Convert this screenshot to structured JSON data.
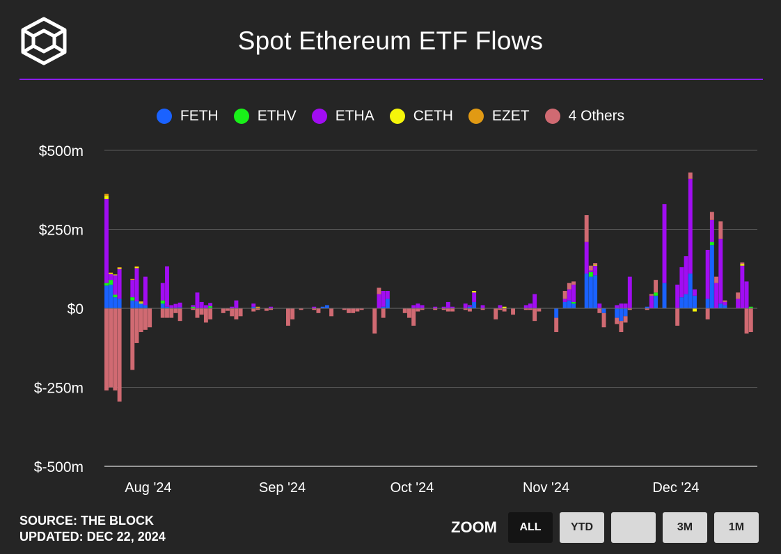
{
  "header": {
    "title": "Spot Ethereum ETF Flows"
  },
  "footer": {
    "source": "SOURCE: THE BLOCK",
    "updated": "UPDATED: DEC 22, 2024"
  },
  "zoom": {
    "label": "ZOOM",
    "buttons": [
      {
        "label": "ALL",
        "active": true
      },
      {
        "label": "YTD",
        "active": false
      },
      {
        "label": "",
        "active": false
      },
      {
        "label": "3M",
        "active": false
      },
      {
        "label": "1M",
        "active": false
      }
    ]
  },
  "colors": {
    "background": "#252525",
    "accent_rule": "#8a1cf0",
    "FETH": "#1a62ff",
    "ETHV": "#19f019",
    "ETHA": "#a10df2",
    "CETH": "#f5f50a",
    "EZET": "#e19a14",
    "4 Others": "#d06a72"
  },
  "chart_data": {
    "type": "bar",
    "stacked": true,
    "ylim": [
      -500,
      500
    ],
    "yticks": [
      500,
      250,
      0,
      -250,
      -500
    ],
    "ytick_labels": [
      "$500m",
      "$250m",
      "$0",
      "$-250m",
      "$-500m"
    ],
    "xlim": [
      "2024-07-23",
      "2024-12-20"
    ],
    "xticks": [
      {
        "label": "Aug '24",
        "date": "2024-08-01"
      },
      {
        "label": "Sep '24",
        "date": "2024-09-01"
      },
      {
        "label": "Oct '24",
        "date": "2024-10-01"
      },
      {
        "label": "Nov '24",
        "date": "2024-11-01"
      },
      {
        "label": "Dec '24",
        "date": "2024-12-01"
      }
    ],
    "grid": true,
    "legend_position": "top-center",
    "series_names": [
      "FETH",
      "ETHV",
      "ETHA",
      "CETH",
      "EZET",
      "4 Others"
    ],
    "bars": [
      {
        "date": "2024-07-23",
        "FETH": 72,
        "ETHV": 8,
        "ETHA": 266,
        "CETH": 10,
        "EZET": 6,
        "4 Others": -260
      },
      {
        "date": "2024-07-24",
        "FETH": 75,
        "ETHV": 15,
        "ETHA": 18,
        "CETH": 3,
        "EZET": 2,
        "4 Others": -250
      },
      {
        "date": "2024-07-25",
        "FETH": 35,
        "ETHV": 8,
        "ETHA": 62,
        "CETH": 2,
        "EZET": 0,
        "4 Others": -260
      },
      {
        "date": "2024-07-26",
        "FETH": 30,
        "ETHV": 0,
        "ETHA": 95,
        "CETH": 3,
        "EZET": 2,
        "4 Others": -295
      },
      {
        "date": "2024-07-29",
        "FETH": 25,
        "ETHV": 10,
        "ETHA": 55,
        "CETH": 0,
        "EZET": 3,
        "4 Others": -195
      },
      {
        "date": "2024-07-30",
        "FETH": 22,
        "ETHV": 0,
        "ETHA": 105,
        "CETH": 3,
        "EZET": 3,
        "4 Others": -110
      },
      {
        "date": "2024-07-31",
        "FETH": 15,
        "ETHV": 0,
        "ETHA": 0,
        "CETH": 4,
        "EZET": 3,
        "4 Others": -75
      },
      {
        "date": "2024-08-01",
        "FETH": 10,
        "ETHV": 0,
        "ETHA": 90,
        "CETH": 0,
        "EZET": 0,
        "4 Others": -68
      },
      {
        "date": "2024-08-02",
        "FETH": 0,
        "ETHV": 0,
        "ETHA": 0,
        "CETH": 0,
        "EZET": 0,
        "4 Others": -60
      },
      {
        "date": "2024-08-05",
        "FETH": 15,
        "ETHV": 10,
        "ETHA": 55,
        "CETH": 0,
        "EZET": 0,
        "4 Others": -30
      },
      {
        "date": "2024-08-06",
        "FETH": 5,
        "ETHV": 0,
        "ETHA": 128,
        "CETH": 0,
        "EZET": 0,
        "4 Others": -30
      },
      {
        "date": "2024-08-07",
        "FETH": 0,
        "ETHV": 0,
        "ETHA": 10,
        "CETH": 0,
        "EZET": 0,
        "4 Others": -30
      },
      {
        "date": "2024-08-08",
        "FETH": 2,
        "ETHV": 0,
        "ETHA": 12,
        "CETH": 0,
        "EZET": 0,
        "4 Others": -15
      },
      {
        "date": "2024-08-09",
        "FETH": 3,
        "ETHV": 0,
        "ETHA": 15,
        "CETH": 0,
        "EZET": 0,
        "4 Others": -40
      },
      {
        "date": "2024-08-12",
        "FETH": 0,
        "ETHV": 5,
        "ETHA": 5,
        "CETH": 0,
        "EZET": 0,
        "4 Others": -5
      },
      {
        "date": "2024-08-13",
        "FETH": 0,
        "ETHV": 0,
        "ETHA": 50,
        "CETH": 0,
        "EZET": 0,
        "4 Others": -30
      },
      {
        "date": "2024-08-14",
        "FETH": 0,
        "ETHV": 0,
        "ETHA": 20,
        "CETH": 0,
        "EZET": 0,
        "4 Others": -20
      },
      {
        "date": "2024-08-15",
        "FETH": 0,
        "ETHV": 0,
        "ETHA": 10,
        "CETH": 0,
        "EZET": 0,
        "4 Others": -45
      },
      {
        "date": "2024-08-16",
        "FETH": 2,
        "ETHV": 5,
        "ETHA": 10,
        "CETH": 0,
        "EZET": 0,
        "4 Others": -35
      },
      {
        "date": "2024-08-19",
        "FETH": 0,
        "ETHV": 0,
        "ETHA": 0,
        "CETH": 0,
        "EZET": 0,
        "4 Others": -15
      },
      {
        "date": "2024-08-20",
        "FETH": 0,
        "ETHV": 0,
        "ETHA": 0,
        "CETH": 0,
        "EZET": 0,
        "4 Others": -8
      },
      {
        "date": "2024-08-21",
        "FETH": 0,
        "ETHV": 0,
        "ETHA": 5,
        "CETH": 0,
        "EZET": 0,
        "4 Others": -25
      },
      {
        "date": "2024-08-22",
        "FETH": 0,
        "ETHV": 0,
        "ETHA": 25,
        "CETH": 0,
        "EZET": 0,
        "4 Others": -35
      },
      {
        "date": "2024-08-23",
        "FETH": 0,
        "ETHV": 0,
        "ETHA": 0,
        "CETH": 0,
        "EZET": 0,
        "4 Others": -25
      },
      {
        "date": "2024-08-26",
        "FETH": 5,
        "ETHV": 0,
        "ETHA": 10,
        "CETH": 0,
        "EZET": 0,
        "4 Others": -10
      },
      {
        "date": "2024-08-27",
        "FETH": 0,
        "ETHV": 0,
        "ETHA": 0,
        "CETH": 0,
        "EZET": 5,
        "4 Others": -5
      },
      {
        "date": "2024-08-29",
        "FETH": 0,
        "ETHV": 0,
        "ETHA": 0,
        "CETH": 0,
        "EZET": 0,
        "4 Others": -8
      },
      {
        "date": "2024-08-30",
        "FETH": 0,
        "ETHV": 0,
        "ETHA": 5,
        "CETH": 0,
        "EZET": 0,
        "4 Others": -5
      },
      {
        "date": "2024-09-03",
        "FETH": 0,
        "ETHV": 0,
        "ETHA": 0,
        "CETH": 0,
        "EZET": 0,
        "4 Others": -55
      },
      {
        "date": "2024-09-04",
        "FETH": 0,
        "ETHV": 0,
        "ETHA": 0,
        "CETH": 0,
        "EZET": 0,
        "4 Others": -35
      },
      {
        "date": "2024-09-06",
        "FETH": 0,
        "ETHV": 0,
        "ETHA": 0,
        "CETH": 0,
        "EZET": 0,
        "4 Others": -5
      },
      {
        "date": "2024-09-09",
        "FETH": 0,
        "ETHV": 0,
        "ETHA": 5,
        "CETH": 0,
        "EZET": 0,
        "4 Others": -5
      },
      {
        "date": "2024-09-10",
        "FETH": 0,
        "ETHV": 0,
        "ETHA": 0,
        "CETH": 0,
        "EZET": 0,
        "4 Others": -15
      },
      {
        "date": "2024-09-11",
        "FETH": 5,
        "ETHV": 0,
        "ETHA": 0,
        "CETH": 0,
        "EZET": 0,
        "4 Others": 0
      },
      {
        "date": "2024-09-12",
        "FETH": 10,
        "ETHV": 0,
        "ETHA": 0,
        "CETH": 0,
        "EZET": 0,
        "4 Others": 0
      },
      {
        "date": "2024-09-13",
        "FETH": 0,
        "ETHV": 0,
        "ETHA": 0,
        "CETH": 0,
        "EZET": 0,
        "4 Others": -25
      },
      {
        "date": "2024-09-16",
        "FETH": 0,
        "ETHV": 0,
        "ETHA": 0,
        "CETH": 0,
        "EZET": 0,
        "4 Others": -5
      },
      {
        "date": "2024-09-17",
        "FETH": 0,
        "ETHV": 0,
        "ETHA": 0,
        "CETH": 0,
        "EZET": 0,
        "4 Others": -15
      },
      {
        "date": "2024-09-18",
        "FETH": 0,
        "ETHV": 0,
        "ETHA": 0,
        "CETH": 0,
        "EZET": 0,
        "4 Others": -15
      },
      {
        "date": "2024-09-19",
        "FETH": 0,
        "ETHV": 0,
        "ETHA": 0,
        "CETH": 0,
        "EZET": 0,
        "4 Others": -10
      },
      {
        "date": "2024-09-20",
        "FETH": 0,
        "ETHV": 0,
        "ETHA": 0,
        "CETH": 0,
        "EZET": 0,
        "4 Others": -5
      },
      {
        "date": "2024-09-23",
        "FETH": 0,
        "ETHV": 0,
        "ETHA": 0,
        "CETH": 0,
        "EZET": 0,
        "4 Others": -80
      },
      {
        "date": "2024-09-24",
        "FETH": 0,
        "ETHV": 0,
        "ETHA": 45,
        "CETH": 0,
        "EZET": 0,
        "4 Others": 20
      },
      {
        "date": "2024-09-25",
        "FETH": 5,
        "ETHV": 0,
        "ETHA": 50,
        "CETH": 0,
        "EZET": 0,
        "4 Others": -30
      },
      {
        "date": "2024-09-26",
        "FETH": 30,
        "ETHV": 0,
        "ETHA": 25,
        "CETH": 0,
        "EZET": 0,
        "4 Others": 0
      },
      {
        "date": "2024-09-27",
        "FETH": 0,
        "ETHV": 0,
        "ETHA": 0,
        "CETH": 0,
        "EZET": 0,
        "4 Others": 0
      },
      {
        "date": "2024-09-30",
        "FETH": 0,
        "ETHV": 0,
        "ETHA": 0,
        "CETH": 0,
        "EZET": 0,
        "4 Others": -15
      },
      {
        "date": "2024-10-01",
        "FETH": 0,
        "ETHV": 0,
        "ETHA": 0,
        "CETH": 0,
        "EZET": 0,
        "4 Others": -30
      },
      {
        "date": "2024-10-02",
        "FETH": 0,
        "ETHV": 0,
        "ETHA": 10,
        "CETH": 0,
        "EZET": 0,
        "4 Others": -55
      },
      {
        "date": "2024-10-03",
        "FETH": 0,
        "ETHV": 0,
        "ETHA": 15,
        "CETH": 0,
        "EZET": 0,
        "4 Others": -10
      },
      {
        "date": "2024-10-04",
        "FETH": 0,
        "ETHV": 0,
        "ETHA": 10,
        "CETH": 0,
        "EZET": 0,
        "4 Others": -5
      },
      {
        "date": "2024-10-07",
        "FETH": 0,
        "ETHV": 0,
        "ETHA": 5,
        "CETH": 0,
        "EZET": 0,
        "4 Others": -5
      },
      {
        "date": "2024-10-09",
        "FETH": 0,
        "ETHV": 0,
        "ETHA": 5,
        "CETH": 0,
        "EZET": 0,
        "4 Others": -5
      },
      {
        "date": "2024-10-10",
        "FETH": 0,
        "ETHV": 0,
        "ETHA": 20,
        "CETH": 0,
        "EZET": 0,
        "4 Others": -10
      },
      {
        "date": "2024-10-11",
        "FETH": 0,
        "ETHV": 0,
        "ETHA": 5,
        "CETH": 0,
        "EZET": 0,
        "4 Others": -10
      },
      {
        "date": "2024-10-14",
        "FETH": 0,
        "ETHV": 0,
        "ETHA": 15,
        "CETH": 0,
        "EZET": 0,
        "4 Others": -5
      },
      {
        "date": "2024-10-15",
        "FETH": 5,
        "ETHV": 0,
        "ETHA": 5,
        "CETH": 0,
        "EZET": 0,
        "4 Others": -10
      },
      {
        "date": "2024-10-16",
        "FETH": 20,
        "ETHV": 0,
        "ETHA": 30,
        "CETH": 5,
        "EZET": 0,
        "4 Others": 0
      },
      {
        "date": "2024-10-18",
        "FETH": 0,
        "ETHV": 0,
        "ETHA": 10,
        "CETH": 0,
        "EZET": 0,
        "4 Others": -5
      },
      {
        "date": "2024-10-21",
        "FETH": 0,
        "ETHV": 0,
        "ETHA": 0,
        "CETH": 0,
        "EZET": 0,
        "4 Others": -35
      },
      {
        "date": "2024-10-22",
        "FETH": 0,
        "ETHV": 0,
        "ETHA": 10,
        "CETH": 0,
        "EZET": 0,
        "4 Others": -5
      },
      {
        "date": "2024-10-23",
        "FETH": 0,
        "ETHV": 0,
        "ETHA": 0,
        "CETH": 5,
        "EZET": 0,
        "4 Others": -10
      },
      {
        "date": "2024-10-25",
        "FETH": 0,
        "ETHV": 0,
        "ETHA": 0,
        "CETH": 0,
        "EZET": 0,
        "4 Others": -20
      },
      {
        "date": "2024-10-28",
        "FETH": 0,
        "ETHV": 0,
        "ETHA": 10,
        "CETH": 0,
        "EZET": 0,
        "4 Others": -5
      },
      {
        "date": "2024-10-29",
        "FETH": 0,
        "ETHV": 0,
        "ETHA": 15,
        "CETH": 0,
        "EZET": 0,
        "4 Others": -5
      },
      {
        "date": "2024-10-30",
        "FETH": 0,
        "ETHV": 0,
        "ETHA": 45,
        "CETH": 0,
        "EZET": 0,
        "4 Others": -40
      },
      {
        "date": "2024-10-31",
        "FETH": 0,
        "ETHV": 0,
        "ETHA": 0,
        "CETH": 0,
        "EZET": 0,
        "4 Others": -10
      },
      {
        "date": "2024-11-04",
        "FETH": -30,
        "ETHV": 0,
        "ETHA": 0,
        "CETH": 0,
        "EZET": 0,
        "4 Others": -45
      },
      {
        "date": "2024-11-06",
        "FETH": 20,
        "ETHV": 0,
        "ETHA": 10,
        "CETH": 0,
        "EZET": 0,
        "4 Others": 25
      },
      {
        "date": "2024-11-07",
        "FETH": 25,
        "ETHV": 0,
        "ETHA": 35,
        "CETH": 0,
        "EZET": 0,
        "4 Others": 20
      },
      {
        "date": "2024-11-08",
        "FETH": 15,
        "ETHV": 5,
        "ETHA": 55,
        "CETH": 0,
        "EZET": 0,
        "4 Others": 10
      },
      {
        "date": "2024-11-11",
        "FETH": 110,
        "ETHV": 0,
        "ETHA": 100,
        "CETH": 0,
        "EZET": 0,
        "4 Others": 85
      },
      {
        "date": "2024-11-12",
        "FETH": 100,
        "ETHV": 15,
        "ETHA": 5,
        "CETH": 0,
        "EZET": 0,
        "4 Others": 15
      },
      {
        "date": "2024-11-13",
        "FETH": 105,
        "ETHV": 0,
        "ETHA": 30,
        "CETH": 3,
        "EZET": 0,
        "4 Others": 5
      },
      {
        "date": "2024-11-14",
        "FETH": 0,
        "ETHV": 0,
        "ETHA": 15,
        "CETH": 0,
        "EZET": 0,
        "4 Others": -15
      },
      {
        "date": "2024-11-15",
        "FETH": -15,
        "ETHV": 0,
        "ETHA": 0,
        "CETH": 0,
        "EZET": 0,
        "4 Others": -45
      },
      {
        "date": "2024-11-18",
        "FETH": -30,
        "ETHV": 0,
        "ETHA": 10,
        "CETH": 0,
        "EZET": 0,
        "4 Others": -20
      },
      {
        "date": "2024-11-19",
        "FETH": -40,
        "ETHV": 0,
        "ETHA": 15,
        "CETH": 0,
        "EZET": 0,
        "4 Others": -35
      },
      {
        "date": "2024-11-20",
        "FETH": -25,
        "ETHV": 0,
        "ETHA": 15,
        "CETH": 0,
        "EZET": 0,
        "4 Others": -20
      },
      {
        "date": "2024-11-21",
        "FETH": 0,
        "ETHV": 0,
        "ETHA": 100,
        "CETH": 0,
        "EZET": 0,
        "4 Others": -5
      },
      {
        "date": "2024-11-25",
        "FETH": 5,
        "ETHV": 0,
        "ETHA": 0,
        "CETH": 0,
        "EZET": 0,
        "4 Others": -5
      },
      {
        "date": "2024-11-26",
        "FETH": 0,
        "ETHV": 0,
        "ETHA": 40,
        "CETH": 0,
        "EZET": 0,
        "4 Others": 5
      },
      {
        "date": "2024-11-27",
        "FETH": 40,
        "ETHV": 10,
        "ETHA": 0,
        "CETH": 0,
        "EZET": 0,
        "4 Others": 40
      },
      {
        "date": "2024-11-29",
        "FETH": 80,
        "ETHV": 0,
        "ETHA": 250,
        "CETH": 0,
        "EZET": 0,
        "4 Others": 0
      },
      {
        "date": "2024-12-02",
        "FETH": 0,
        "ETHV": 0,
        "ETHA": 75,
        "CETH": 0,
        "EZET": 0,
        "4 Others": -55
      },
      {
        "date": "2024-12-03",
        "FETH": 35,
        "ETHV": 0,
        "ETHA": 95,
        "CETH": 0,
        "EZET": 0,
        "4 Others": 0
      },
      {
        "date": "2024-12-04",
        "FETH": 45,
        "ETHV": 0,
        "ETHA": 120,
        "CETH": 0,
        "EZET": 0,
        "4 Others": 0
      },
      {
        "date": "2024-12-05",
        "FETH": 110,
        "ETHV": 0,
        "ETHA": 300,
        "CETH": 0,
        "EZET": 0,
        "4 Others": 20
      },
      {
        "date": "2024-12-06",
        "FETH": 40,
        "ETHV": 0,
        "ETHA": 20,
        "CETH": -10,
        "EZET": 0,
        "4 Others": 0
      },
      {
        "date": "2024-12-09",
        "FETH": 30,
        "ETHV": 0,
        "ETHA": 155,
        "CETH": 0,
        "EZET": 0,
        "4 Others": -35
      },
      {
        "date": "2024-12-10",
        "FETH": 200,
        "ETHV": 10,
        "ETHA": 70,
        "CETH": 0,
        "EZET": 0,
        "4 Others": 25
      },
      {
        "date": "2024-12-11",
        "FETH": 0,
        "ETHV": 0,
        "ETHA": 80,
        "CETH": 0,
        "EZET": 0,
        "4 Others": 20
      },
      {
        "date": "2024-12-12",
        "FETH": 15,
        "ETHV": 0,
        "ETHA": 205,
        "CETH": 0,
        "EZET": 0,
        "4 Others": 55
      },
      {
        "date": "2024-12-13",
        "FETH": 10,
        "ETHV": 0,
        "ETHA": 10,
        "CETH": 0,
        "EZET": 0,
        "4 Others": 5
      },
      {
        "date": "2024-12-16",
        "FETH": 0,
        "ETHV": 0,
        "ETHA": 30,
        "CETH": 0,
        "EZET": 0,
        "4 Others": 20
      },
      {
        "date": "2024-12-17",
        "FETH": 0,
        "ETHV": 0,
        "ETHA": 135,
        "CETH": 5,
        "EZET": 0,
        "4 Others": 5
      },
      {
        "date": "2024-12-18",
        "FETH": 0,
        "ETHV": 0,
        "ETHA": 85,
        "CETH": 0,
        "EZET": 0,
        "4 Others": -80
      },
      {
        "date": "2024-12-19",
        "FETH": 0,
        "ETHV": 5,
        "ETHA": 0,
        "CETH": 0,
        "EZET": 0,
        "4 Others": -75
      }
    ]
  }
}
